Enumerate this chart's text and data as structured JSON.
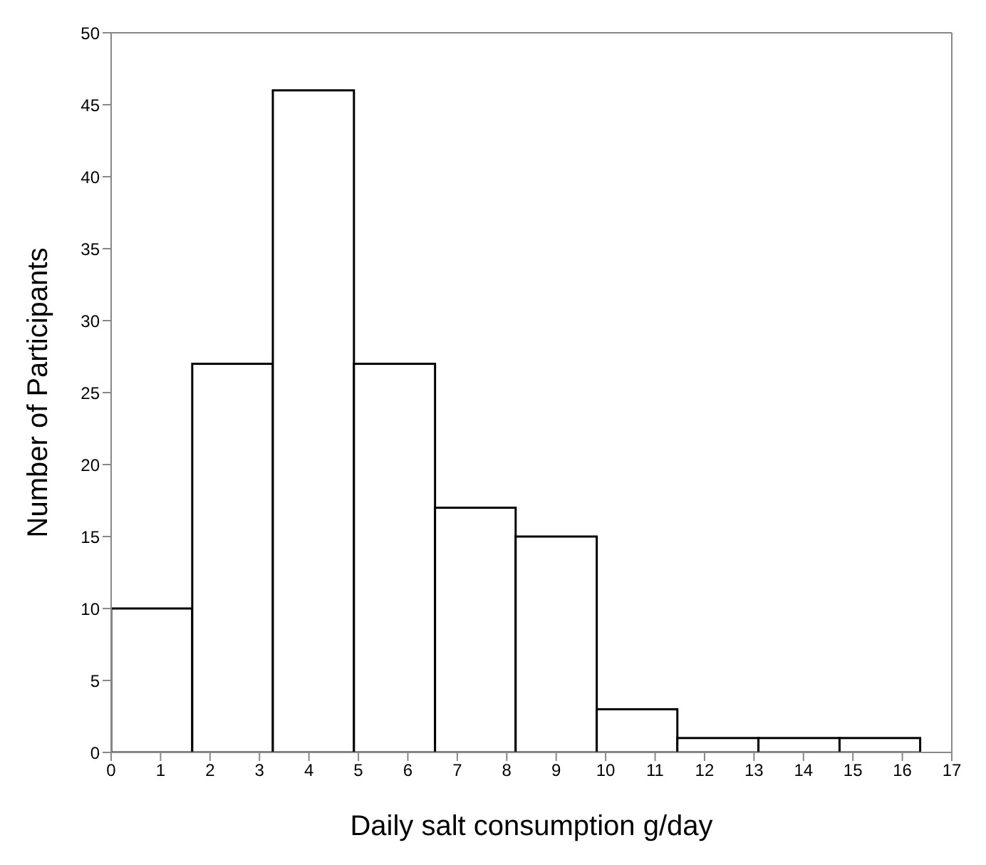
{
  "chart_data": {
    "type": "histogram",
    "xlabel": "Daily salt consumption  g/day",
    "ylabel": "Number of Participants",
    "bins": [
      0,
      1.64,
      3.27,
      4.91,
      6.55,
      8.18,
      9.82,
      11.45,
      13.09,
      14.73,
      16.36
    ],
    "values": [
      10,
      27,
      46,
      27,
      17,
      15,
      3,
      1,
      1,
      1
    ],
    "color": "#ffffff",
    "xlim": [
      0,
      17
    ],
    "xticks": [
      0,
      1,
      2,
      3,
      4,
      5,
      6,
      7,
      8,
      9,
      10,
      11,
      12,
      13,
      14,
      15,
      16,
      17
    ],
    "ylim": [
      0,
      50
    ],
    "yticks": [
      0,
      5,
      10,
      15,
      20,
      25,
      30,
      35,
      40,
      45,
      50
    ],
    "grid": false
  }
}
